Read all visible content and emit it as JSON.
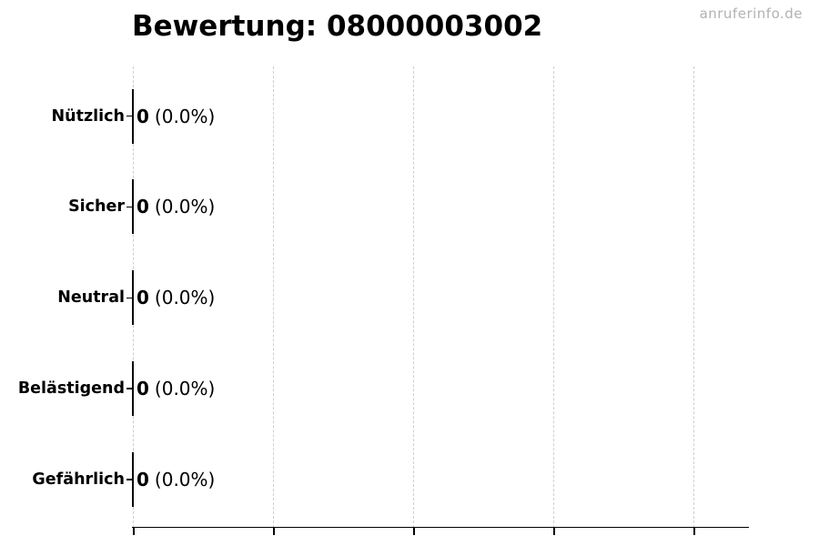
{
  "watermark": "anruferinfo.de",
  "chart": {
    "title": "Bewertung: 08000003002"
  },
  "chart_data": {
    "type": "bar",
    "orientation": "horizontal",
    "title": "Bewertung: 08000003002",
    "categories": [
      "Nützlich",
      "Sicher",
      "Neutral",
      "Belästigend",
      "Gefährlich"
    ],
    "values": [
      0,
      0,
      0,
      0,
      0
    ],
    "value_labels": [
      {
        "count": "0",
        "percent": "(0.0%)"
      },
      {
        "count": "0",
        "percent": "(0.0%)"
      },
      {
        "count": "0",
        "percent": "(0.0%)"
      },
      {
        "count": "0",
        "percent": "(0.0%)"
      },
      {
        "count": "0",
        "percent": "(0.0%)"
      }
    ],
    "xlabel": "",
    "ylabel": "",
    "xlim": [
      0,
      1
    ],
    "x_tick_labels": [],
    "grid": "vertical-dashed",
    "legend": "none"
  },
  "colors": {
    "background": "#ffffff",
    "text": "#000000",
    "bar_edge": "#000000",
    "axis": "#000000",
    "gridline": "#cfcfcf",
    "watermark": "#b2b2b2"
  }
}
